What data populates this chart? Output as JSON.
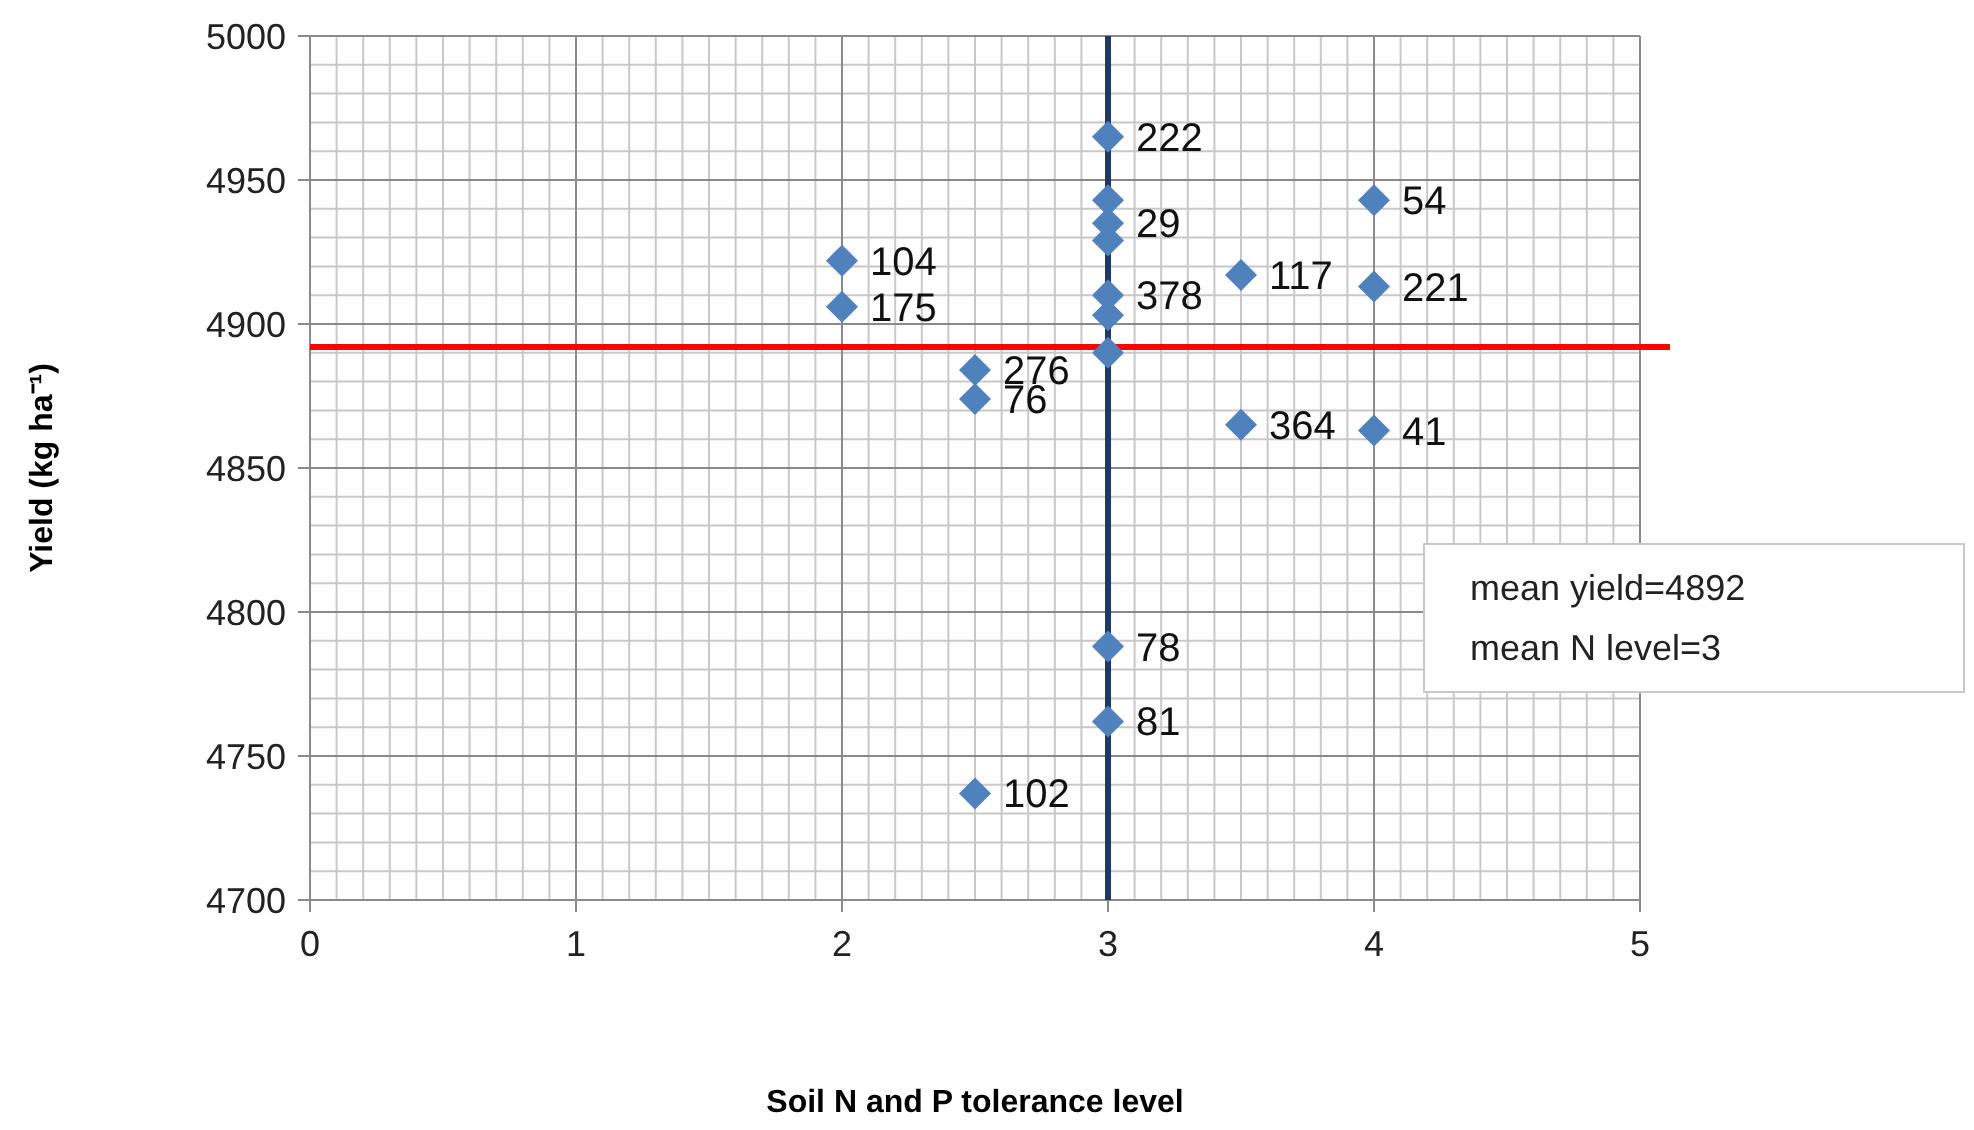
{
  "chart_data": {
    "type": "scatter",
    "xlabel": "Soil N and P tolerance level",
    "ylabel": "Yield (kg ha⁻¹)",
    "x": [
      3,
      3,
      3,
      3,
      3,
      3,
      3,
      2,
      2,
      2.5,
      2.5,
      4,
      4,
      3.5,
      3.5,
      4,
      3,
      3,
      2.5
    ],
    "series": [
      {
        "color": "#4f81bd",
        "values": [
          4965,
          4943,
          4935,
          4929,
          4910,
          4903,
          4890,
          4922,
          4906,
          4884,
          4874,
          4943,
          4913,
          4917,
          4865,
          4863,
          4788,
          4762,
          4737
        ]
      }
    ],
    "xlim": [
      0,
      5
    ],
    "xticks": [
      0,
      1,
      2,
      3,
      4,
      5
    ],
    "ylim": [
      4700,
      5000
    ],
    "yticks": [
      4700,
      4750,
      4800,
      4850,
      4900,
      4950,
      5000
    ],
    "grid": true,
    "marker": "diamond",
    "ref_lines": [
      {
        "axis": "y",
        "value": 4892,
        "color": "#ff0000"
      },
      {
        "axis": "x",
        "value": 3,
        "color": "#1f3864"
      }
    ],
    "annotations": [
      {
        "text": "222",
        "x": 3,
        "y": 4965
      },
      {
        "text": "29",
        "x": 3,
        "y": 4935
      },
      {
        "text": "378",
        "x": 3,
        "y": 4910
      },
      {
        "text": "104",
        "x": 2,
        "y": 4922
      },
      {
        "text": "175",
        "x": 2,
        "y": 4906
      },
      {
        "text": "276",
        "x": 2.5,
        "y": 4884
      },
      {
        "text": "76",
        "x": 2.5,
        "y": 4874
      },
      {
        "text": "54",
        "x": 4,
        "y": 4943
      },
      {
        "text": "221",
        "x": 4,
        "y": 4913
      },
      {
        "text": "117",
        "x": 3.5,
        "y": 4917
      },
      {
        "text": "364",
        "x": 3.5,
        "y": 4865
      },
      {
        "text": "41",
        "x": 4,
        "y": 4863
      },
      {
        "text": "78",
        "x": 3,
        "y": 4788
      },
      {
        "text": "81",
        "x": 3,
        "y": 4762
      },
      {
        "text": "102",
        "x": 2.5,
        "y": 4737
      },
      "mean yield=4892",
      "mean N level=3"
    ]
  }
}
